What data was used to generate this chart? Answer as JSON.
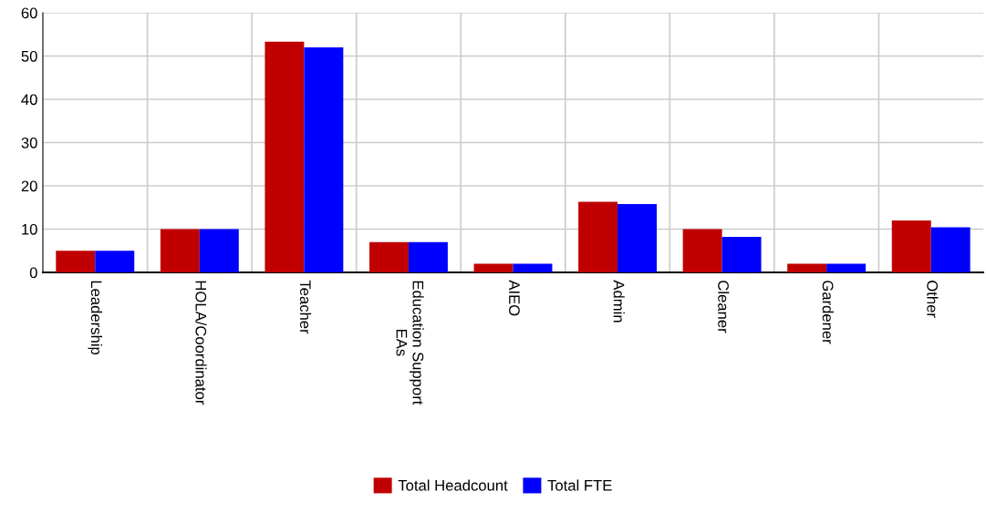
{
  "chart_data": {
    "type": "bar",
    "categories": [
      "Leadership",
      "HOLA/Coordinator",
      "Teacher",
      "Education Support\nEAs",
      "AIEO",
      "Admin",
      "Cleaner",
      "Gardener",
      "Other"
    ],
    "series": [
      {
        "name": "Total Headcount",
        "color": "#c00000",
        "values": [
          5,
          10,
          53.3,
          7,
          2,
          16.3,
          10,
          2,
          12
        ]
      },
      {
        "name": "Total FTE",
        "color": "#0000ff",
        "values": [
          5,
          10,
          52,
          7,
          2,
          15.8,
          8.2,
          2,
          10.4
        ]
      }
    ],
    "ylim": [
      0,
      60
    ],
    "yticks": [
      0,
      10,
      20,
      30,
      40,
      50,
      60
    ],
    "grid": true,
    "legend": "bottom"
  }
}
